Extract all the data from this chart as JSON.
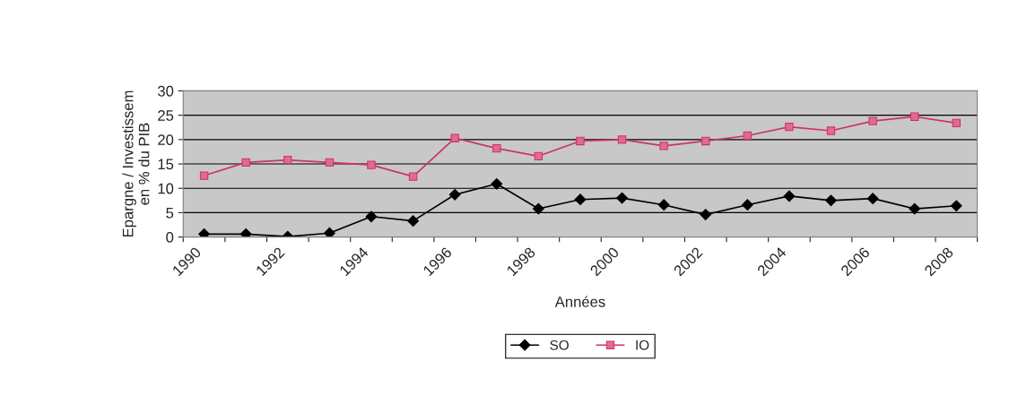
{
  "chart_data": {
    "type": "line",
    "xlabel": "Années",
    "ylabel": "Epargne / Investissem\nen % du PIB",
    "categories": [
      "1990",
      null,
      "1992",
      null,
      "1994",
      null,
      "1996",
      null,
      "1998",
      null,
      "2000",
      null,
      "2002",
      null,
      "2004",
      null,
      "2006",
      null,
      "2008"
    ],
    "series": [
      {
        "name": "SO",
        "color": "#000000",
        "marker": "diamond",
        "values": [
          0.6,
          0.6,
          0.1,
          0.8,
          4.2,
          3.3,
          8.7,
          10.9,
          5.8,
          7.7,
          8.0,
          6.6,
          4.6,
          6.6,
          8.4,
          7.5,
          7.9,
          5.8,
          6.4
        ]
      },
      {
        "name": "IO",
        "color": "#cc3366",
        "marker": "square",
        "values": [
          12.6,
          15.3,
          15.8,
          15.3,
          14.8,
          12.4,
          20.3,
          18.2,
          16.6,
          19.7,
          20.0,
          18.7,
          19.7,
          20.8,
          22.6,
          21.8,
          23.8,
          24.7,
          23.4
        ]
      }
    ],
    "ylim": [
      0,
      30
    ],
    "yticks": [
      0,
      5,
      10,
      15,
      20,
      25,
      30
    ],
    "grid": "y",
    "legend": "bottom"
  }
}
